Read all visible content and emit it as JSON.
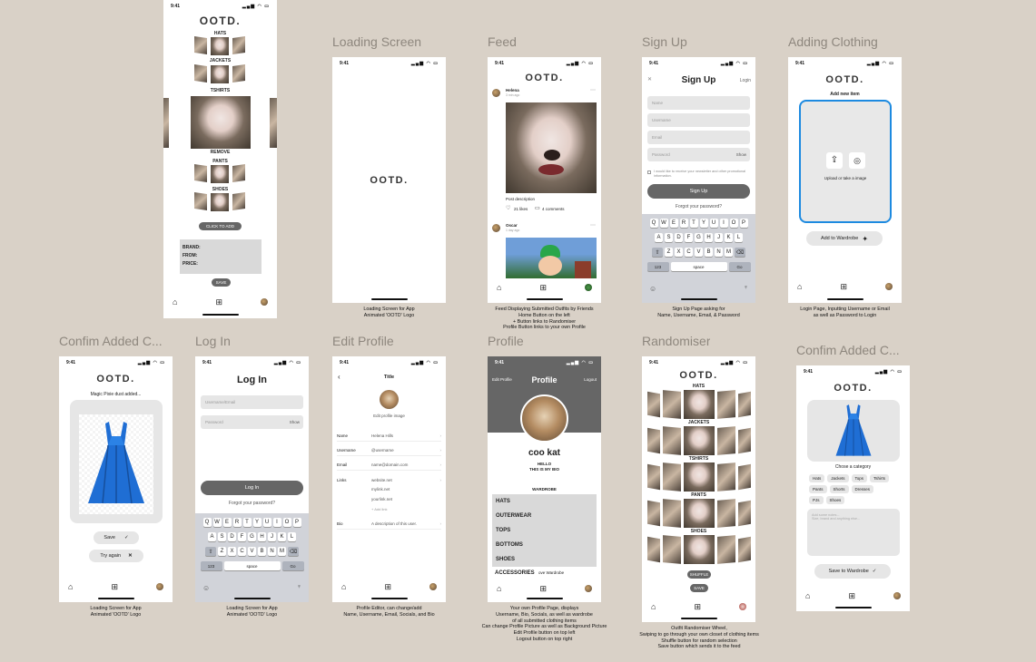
{
  "status_time": "9:41",
  "frames": {
    "wardrobe_top": {
      "logo": "OOTD.",
      "categories": [
        "HATS",
        "JACKETS",
        "TSHIRTS",
        "REMOVE",
        "PANTS",
        "SHOES"
      ],
      "click_to_add": "CLICK TO ADD",
      "info_lines": [
        "BRAND:",
        "FROM:",
        "PRICE:"
      ],
      "save": "SAVE"
    },
    "loading": {
      "label": "Loading Screen",
      "logo": "OOTD.",
      "caption": [
        "Loading Screen for App",
        "Animated 'OOTD' Logo"
      ]
    },
    "feed": {
      "label": "Feed",
      "logo": "OOTD.",
      "post1_user": "Helena",
      "post1_time": "3 min ago",
      "post_description": "Post description",
      "likes": "21 likes",
      "comments": "4 comments",
      "post2_user": "Oscar",
      "post2_time": "1 day ago",
      "caption": [
        "Feed Displaying Submitted Outfits by Friends",
        "Home Button on the left",
        "+ Button links to Randomiser",
        "Profile Button links to your own Profile"
      ]
    },
    "signup": {
      "label": "Sign Up",
      "title": "Sign Up",
      "login_link": "Login",
      "fields": [
        "Name",
        "Username",
        "Email",
        "Password"
      ],
      "show": "Show",
      "newsletter": "I would like to receive your newsletter and other promotional information.",
      "button": "Sign Up",
      "forgot": "Forgot your password?",
      "kbd_row1": [
        "Q",
        "W",
        "E",
        "R",
        "T",
        "Y",
        "U",
        "I",
        "O",
        "P"
      ],
      "kbd_row2": [
        "A",
        "S",
        "D",
        "F",
        "G",
        "H",
        "J",
        "K",
        "L"
      ],
      "kbd_row3": [
        "Z",
        "X",
        "C",
        "V",
        "B",
        "N",
        "M"
      ],
      "kbd_123": "123",
      "kbd_space": "space",
      "kbd_go": "Go",
      "caption": [
        "Sign Up Page asking for",
        "Name, Username, Email, & Password"
      ]
    },
    "adding": {
      "label": "Adding Clothing",
      "logo": "OOTD.",
      "subtitle": "Add new item",
      "upload_text": "Upload or take a image",
      "button": "Add to Wardrobe",
      "caption": [
        "Login Page, Inputting Username or Email",
        "as well as Password to Login"
      ]
    },
    "confirm1": {
      "label": "Confim Added C...",
      "logo": "OOTD.",
      "subtitle": "Magic Pixie dust added...",
      "save": "Save",
      "try_again": "Try again",
      "caption": [
        "Loading Screen for App",
        "Animated 'OOTD' Logo"
      ]
    },
    "login": {
      "label": "Log In",
      "title": "Log In",
      "fields": [
        "Username/Email",
        "Password"
      ],
      "show": "Show",
      "button": "Log In",
      "forgot": "Forgot your password?",
      "caption": [
        "Loading Screen for App",
        "Animated 'OOTD' Logo"
      ]
    },
    "edit_profile": {
      "label": "Edit Profile",
      "title": "Title",
      "edit_image": "Edit profile image",
      "rows": [
        {
          "label": "Name",
          "value": "Helena Hills"
        },
        {
          "label": "Username",
          "value": "@username"
        },
        {
          "label": "Email",
          "value": "name@domain.com"
        },
        {
          "label": "Links",
          "value": "website.net"
        }
      ],
      "links_extra": [
        "mylink.net",
        "yourlink.net"
      ],
      "add_link": "+ Add link",
      "bio_label": "Bio",
      "bio_value": "A description of this user.",
      "caption": [
        "Profile Editor, can change/add",
        "Name, Username, Email, Socials, and Bio"
      ]
    },
    "profile": {
      "label": "Profile",
      "edit": "Edit Profile",
      "title": "Profile",
      "logout": "Logout",
      "username": "coo kat",
      "bio_1": "HELLO",
      "bio_2": "THIS IS MY BIO",
      "wardrobe_title": "WARDROBE",
      "menu": [
        "HATS",
        "OUTERWEAR",
        "TOPS",
        "BOTTOMS",
        "SHOES",
        "ACCESSORIES"
      ],
      "overlap_text": "ove Wardrobe",
      "caption": [
        "Your own Profile Page, displays",
        "Username, Bio, Socials, as well as wardrobe",
        "of all submitted clothing items",
        "Can change Profile Picture as well as Background Picture",
        "Edit Profile button on top left",
        "Logout button on top right"
      ]
    },
    "randomiser": {
      "label": "Randomiser",
      "logo": "OOTD.",
      "categories": [
        "HATS",
        "JACKETS",
        "TSHIRTS",
        "PANTS",
        "SHOES"
      ],
      "shuffle": "SHUFFLE",
      "save": "SAVE",
      "caption": [
        "Outfit Randomiser Wheel,",
        "Swiping to go through your own closet of clothing items",
        "Shuffle button for random selection",
        "Save button which sends it to the feed"
      ]
    },
    "confirm2": {
      "label": "Confim Added C...",
      "logo": "OOTD.",
      "choose": "Chose a category",
      "chips_row1": [
        "Hats",
        "Jackets",
        "Tops",
        "Tshirts"
      ],
      "chips_row2": [
        "Pants",
        "Shorts",
        "Dresses"
      ],
      "chips_row3": [
        "PJs",
        "Shoes"
      ],
      "note_placeholder": "Add some notes...\nSize, brand and anything else...",
      "button": "Save to Wardrobe"
    }
  }
}
